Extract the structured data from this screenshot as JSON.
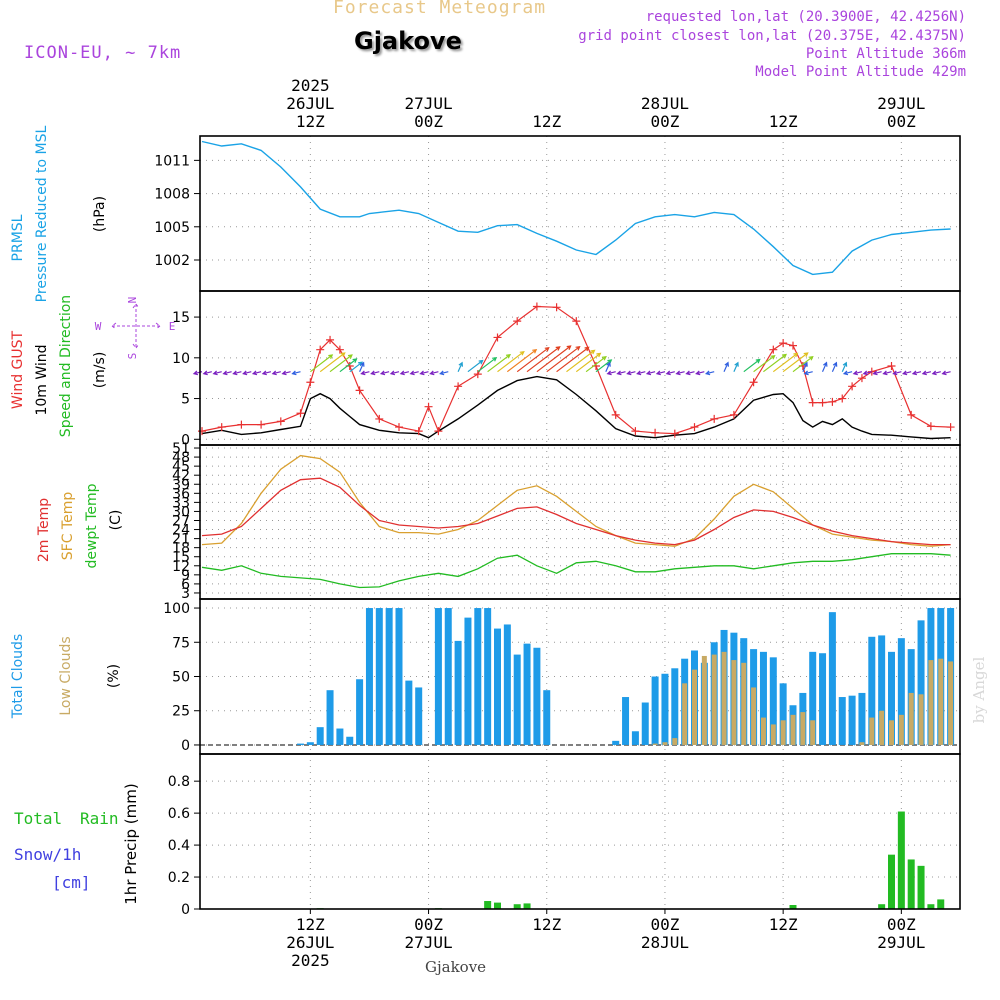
{
  "header": {
    "supertitle": "Forecast Meteogram",
    "station": "Gjakove",
    "model": "ICON-EU, ~ 7km",
    "requested": "requested lon,lat (20.3900E, 42.4256N)",
    "gridpoint": "grid point closest lon,lat (20.375E, 42.4375N)",
    "point_alt": "Point Altitude 366m",
    "model_alt": "Model Point Altitude 429m",
    "footer_station": "Gjakove",
    "credit": "by Angel"
  },
  "time_axis": {
    "ticks": [
      {
        "hour": 12,
        "label": "12Z",
        "date": "26JUL",
        "year": "2025"
      },
      {
        "hour": 24,
        "label": "00Z",
        "date": "27JUL"
      },
      {
        "hour": 36,
        "label": "12Z"
      },
      {
        "hour": 48,
        "label": "00Z",
        "date": "28JUL"
      },
      {
        "hour": 60,
        "label": "12Z"
      },
      {
        "hour": 72,
        "label": "00Z",
        "date": "29JUL"
      }
    ],
    "start_hour": 1,
    "end_hour": 77
  },
  "colors": {
    "pressure": "#1aa3e6",
    "gust": "#e83030",
    "wind": "#000000",
    "wind_dir_label": "#22bb22",
    "temp2m": "#e03030",
    "sfc": "#d9a030",
    "dew": "#22bb22",
    "total_clouds": "#1e9be8",
    "low_clouds": "#c8aa64",
    "rain": "#22bb22",
    "snow": "#4040e0",
    "compass": "#aa44dd",
    "header_purple": "#aa44dd",
    "supertitle": "#e8c88a"
  },
  "chart_data": [
    {
      "type": "line",
      "panel": "pressure",
      "labels": [
        "PRMSL",
        "Pressure Reduced to MSL",
        "(hPa)"
      ],
      "yticks": [
        1002,
        1005,
        1008,
        1011
      ],
      "ylim": [
        999.2,
        1013.2
      ],
      "x": [
        1,
        3,
        5,
        7,
        9,
        11,
        13,
        15,
        17,
        18,
        19,
        21,
        23,
        25,
        27,
        29,
        31,
        33,
        35,
        37,
        39,
        41,
        43,
        45,
        47,
        49,
        51,
        53,
        55,
        57,
        59,
        61,
        63,
        65,
        67,
        69,
        71,
        73,
        75,
        77
      ],
      "series": [
        {
          "name": "PRMSL",
          "values": [
            1012.7,
            1012.3,
            1012.5,
            1011.9,
            1010.4,
            1008.6,
            1006.6,
            1005.9,
            1005.9,
            1006.2,
            1006.3,
            1006.5,
            1006.2,
            1005.4,
            1004.6,
            1004.5,
            1005.1,
            1005.2,
            1004.4,
            1003.7,
            1002.9,
            1002.5,
            1003.8,
            1005.3,
            1005.9,
            1006.1,
            1005.9,
            1006.3,
            1006.1,
            1004.8,
            1003.2,
            1001.5,
            1000.7,
            1000.9,
            1002.8,
            1003.8,
            1004.3,
            1004.5,
            1004.7,
            1004.8
          ]
        }
      ]
    },
    {
      "type": "line",
      "panel": "wind",
      "labels": [
        "Wind GUST",
        "10m Wind",
        "Speed and Direction",
        "(m/s)"
      ],
      "yticks": [
        0,
        5,
        10,
        15
      ],
      "ylim": [
        -0.7,
        18.2
      ],
      "wind_barb_level": 8.3,
      "compass": {
        "N": "N",
        "S": "S",
        "E": "E",
        "W": "W"
      },
      "x": [
        1,
        3,
        5,
        7,
        9,
        11,
        12,
        13,
        14,
        15,
        16,
        17,
        19,
        21,
        23,
        24,
        25,
        27,
        29,
        31,
        33,
        35,
        37,
        39,
        41,
        43,
        45,
        47,
        49,
        51,
        53,
        55,
        57,
        59,
        60,
        61,
        62,
        63,
        64,
        65,
        66,
        67,
        68,
        69,
        71,
        73,
        75,
        77
      ],
      "series": [
        {
          "name": "Wind GUST",
          "values": [
            1.0,
            1.5,
            1.8,
            1.8,
            2.2,
            3.2,
            7.0,
            11.0,
            12.2,
            11.0,
            9.0,
            6.0,
            2.5,
            1.5,
            1.0,
            4.0,
            1.0,
            6.5,
            8.0,
            12.5,
            14.5,
            16.3,
            16.2,
            14.5,
            9.0,
            3.0,
            1.0,
            0.8,
            0.7,
            1.5,
            2.5,
            3.0,
            7.0,
            11.0,
            11.8,
            11.5,
            9.0,
            4.5,
            4.5,
            4.6,
            5.0,
            6.5,
            7.5,
            8.3,
            9.0,
            3.0,
            1.6,
            1.5
          ]
        },
        {
          "name": "10m Wind",
          "values": [
            0.7,
            1.1,
            0.6,
            0.8,
            1.2,
            1.6,
            5.0,
            5.6,
            5.0,
            3.8,
            2.8,
            1.8,
            1.1,
            0.8,
            0.7,
            0.2,
            1.0,
            2.5,
            4.2,
            6.0,
            7.2,
            7.7,
            7.3,
            5.5,
            3.5,
            1.3,
            0.4,
            0.2,
            0.5,
            0.7,
            1.5,
            2.5,
            4.8,
            5.5,
            5.6,
            4.5,
            2.3,
            1.5,
            2.2,
            1.8,
            2.5,
            1.5,
            1.0,
            0.6,
            0.5,
            0.3,
            0.1,
            0.2
          ]
        }
      ]
    },
    {
      "type": "line",
      "panel": "temperature",
      "labels": [
        "2m Temp",
        "SFC Temp",
        "dewpt Temp",
        "(C)"
      ],
      "yticks": [
        3,
        6,
        9,
        12,
        15,
        18,
        21,
        24,
        27,
        30,
        33,
        36,
        39,
        42,
        45,
        48,
        51
      ],
      "ylim": [
        1,
        52
      ],
      "x": [
        1,
        3,
        5,
        7,
        9,
        11,
        13,
        15,
        17,
        19,
        21,
        23,
        25,
        27,
        29,
        31,
        33,
        35,
        37,
        39,
        41,
        43,
        45,
        47,
        49,
        51,
        53,
        55,
        57,
        59,
        61,
        63,
        65,
        67,
        69,
        71,
        73,
        75,
        77
      ],
      "series": [
        {
          "name": "2m Temp",
          "values": [
            22.0,
            22.5,
            25.0,
            31.0,
            37.0,
            40.5,
            41.0,
            38.0,
            32.0,
            27.0,
            25.5,
            25.0,
            24.5,
            25.0,
            26.0,
            28.5,
            31.0,
            31.5,
            29.0,
            26.0,
            24.0,
            22.0,
            20.5,
            19.5,
            19.0,
            20.5,
            24.0,
            28.0,
            30.5,
            30.0,
            28.0,
            25.5,
            23.5,
            22.0,
            21.0,
            20.0,
            19.5,
            19.0,
            19.0
          ]
        },
        {
          "name": "SFC Temp",
          "values": [
            19.0,
            19.5,
            26.0,
            36.0,
            44.0,
            48.5,
            47.5,
            43.0,
            33.0,
            25.0,
            23.0,
            23.0,
            22.5,
            24.0,
            27.0,
            32.0,
            37.0,
            38.5,
            35.0,
            30.0,
            25.0,
            22.0,
            19.5,
            19.0,
            18.5,
            21.0,
            27.5,
            35.0,
            39.0,
            36.5,
            31.0,
            25.5,
            22.5,
            21.5,
            20.5,
            20.0,
            19.0,
            18.5,
            19.0
          ]
        },
        {
          "name": "dewpt Temp",
          "values": [
            11.5,
            10.5,
            12.0,
            9.5,
            8.5,
            8.0,
            7.5,
            6.0,
            4.8,
            5.0,
            7.0,
            8.5,
            9.5,
            8.5,
            11.0,
            14.5,
            15.5,
            12.0,
            9.5,
            13.0,
            13.5,
            12.0,
            10.0,
            10.0,
            11.0,
            11.5,
            12.0,
            12.0,
            11.0,
            12.0,
            13.0,
            13.5,
            13.5,
            14.0,
            15.0,
            16.0,
            16.0,
            16.0,
            15.5
          ]
        }
      ]
    },
    {
      "type": "bar",
      "panel": "clouds",
      "labels": [
        "Total Clouds",
        "Low Clouds",
        "(%)"
      ],
      "yticks": [
        0,
        25,
        50,
        75,
        100
      ],
      "ylim": [
        -6.6,
        106.6
      ],
      "x": [
        1,
        2,
        3,
        4,
        5,
        6,
        7,
        8,
        9,
        10,
        11,
        12,
        13,
        14,
        15,
        16,
        17,
        18,
        19,
        20,
        21,
        22,
        23,
        24,
        25,
        26,
        27,
        28,
        29,
        30,
        31,
        32,
        33,
        34,
        35,
        36,
        37,
        38,
        39,
        40,
        41,
        42,
        43,
        44,
        45,
        46,
        47,
        48,
        49,
        50,
        51,
        52,
        53,
        54,
        55,
        56,
        57,
        58,
        59,
        60,
        61,
        62,
        63,
        64,
        65,
        66,
        67,
        68,
        69,
        70,
        71,
        72,
        73,
        74,
        75,
        76,
        77
      ],
      "series": [
        {
          "name": "Total Clouds",
          "values": [
            0,
            0,
            0,
            0,
            0,
            0,
            0,
            0,
            0,
            0,
            1,
            2,
            13,
            40,
            12,
            6,
            48,
            100,
            100,
            100,
            100,
            47,
            42,
            0,
            100,
            100,
            76,
            93,
            100,
            100,
            85,
            88,
            66,
            74,
            71,
            40,
            0,
            0,
            0,
            0,
            0,
            0,
            3,
            35,
            10,
            31,
            50,
            52,
            56,
            63,
            69,
            60,
            75,
            84,
            82,
            78,
            70,
            68,
            64,
            45,
            29,
            38,
            68,
            67,
            97,
            35,
            36,
            38,
            79,
            80,
            68,
            78,
            70,
            91,
            100,
            100,
            100
          ]
        },
        {
          "name": "Low Clouds",
          "values": [
            0,
            0,
            0,
            0,
            0,
            0,
            0,
            0,
            0,
            0,
            0,
            0,
            0,
            0,
            0,
            0,
            0,
            0,
            0,
            0,
            0,
            0,
            0,
            0,
            0,
            0,
            0,
            0,
            0,
            0,
            0,
            0,
            0,
            0,
            0,
            0,
            0,
            0,
            0,
            0,
            0,
            0,
            0,
            0,
            0,
            0,
            1,
            2,
            5,
            45,
            55,
            65,
            66,
            68,
            62,
            60,
            42,
            20,
            15,
            18,
            22,
            24,
            18,
            0,
            0,
            0,
            0,
            2,
            20,
            25,
            18,
            22,
            38,
            37,
            62,
            63,
            61
          ]
        }
      ]
    },
    {
      "type": "bar",
      "panel": "precip",
      "labels": [
        "Total",
        "Rain",
        "Snow/1h",
        "[cm]",
        "1hr Precip (mm)"
      ],
      "yticks": [
        0,
        0.2,
        0.4,
        0.6,
        0.8
      ],
      "ylim": [
        0,
        0.97
      ],
      "x": [
        13,
        25,
        30,
        31,
        33,
        34,
        61,
        70,
        71,
        72,
        73,
        74,
        75,
        76,
        77
      ],
      "series": [
        {
          "name": "Total Rain",
          "values": [
            0.005,
            0.005,
            0.05,
            0.04,
            0.03,
            0.035,
            0.025,
            0.03,
            0.34,
            0.61,
            0.31,
            0.27,
            0.03,
            0.06,
            0.0
          ]
        },
        {
          "name": "Snow/1h",
          "values": [
            0,
            0,
            0,
            0,
            0,
            0,
            0,
            0,
            0,
            0,
            0,
            0,
            0,
            0,
            0
          ]
        }
      ]
    }
  ]
}
